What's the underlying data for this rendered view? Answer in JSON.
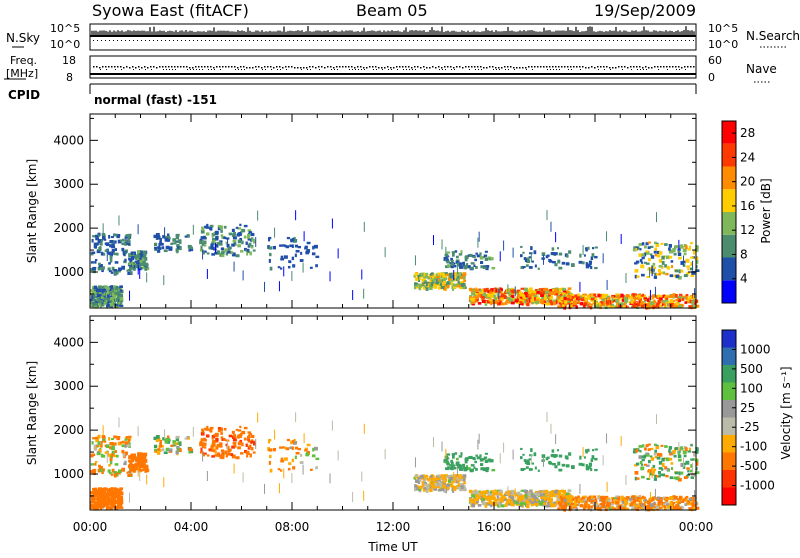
{
  "header": {
    "station": "Syowa East (fitACF)",
    "beam": "Beam 05",
    "date": "19/Sep/2009"
  },
  "status_panels": {
    "nsky_label": "N.Sky",
    "nsearch_label": "N.Search",
    "nsky_ticks": [
      "10^5",
      "10^0"
    ],
    "nsearch_ticks": [
      "10^5",
      "10^0"
    ],
    "freq_label_1": "Freq.",
    "freq_label_2": "[MHz]",
    "freq_ticks": [
      "18",
      "8"
    ],
    "nave_label": "Nave",
    "nave_ticks": [
      "60",
      "0"
    ],
    "cpid_label": "CPID",
    "cpid_value": "normal (fast) -151"
  },
  "colors": {
    "power_scale": [
      "#0000ff",
      "#1f4fa8",
      "#4b8c6f",
      "#7fb85a",
      "#ffcc00",
      "#ff8c00",
      "#ff3a00",
      "#ff0000"
    ],
    "velocity_scale": [
      "#ff0000",
      "#ff3300",
      "#ff7700",
      "#ffaa00",
      "#bbbbaa",
      "#999999",
      "#5fc040",
      "#3aa060",
      "#2f6fb0",
      "#1e2fcc"
    ]
  },
  "chart_data": [
    {
      "type": "heatmap",
      "name": "power",
      "xlabel": "",
      "ylabel": "Slant Range [km]",
      "xlim": [
        "00:00",
        "24:00"
      ],
      "ylim": [
        180,
        4600
      ],
      "x_tick_labels": [
        "00:00",
        "04:00",
        "08:00",
        "12:00",
        "16:00",
        "20:00",
        "00:00"
      ],
      "y_ticks": [
        1000,
        2000,
        3000,
        4000
      ],
      "colorbar_label": "Power [dB]",
      "colorbar_ticks": [
        4,
        8,
        12,
        16,
        20,
        24,
        28
      ],
      "colorbar_range": [
        0,
        30
      ]
    },
    {
      "type": "heatmap",
      "name": "velocity",
      "xlabel": "Time UT",
      "ylabel": "Slant Range [km]",
      "xlim": [
        "00:00",
        "24:00"
      ],
      "ylim": [
        180,
        4600
      ],
      "x_tick_labels": [
        "00:00",
        "04:00",
        "08:00",
        "12:00",
        "16:00",
        "20:00",
        "00:00"
      ],
      "y_ticks": [
        1000,
        2000,
        3000,
        4000
      ],
      "colorbar_label": "Velocity [m s⁻¹]",
      "colorbar_ticks": [
        "1000",
        "500",
        "100",
        "25",
        "-25",
        "-100",
        "-500",
        "-1000"
      ]
    }
  ]
}
